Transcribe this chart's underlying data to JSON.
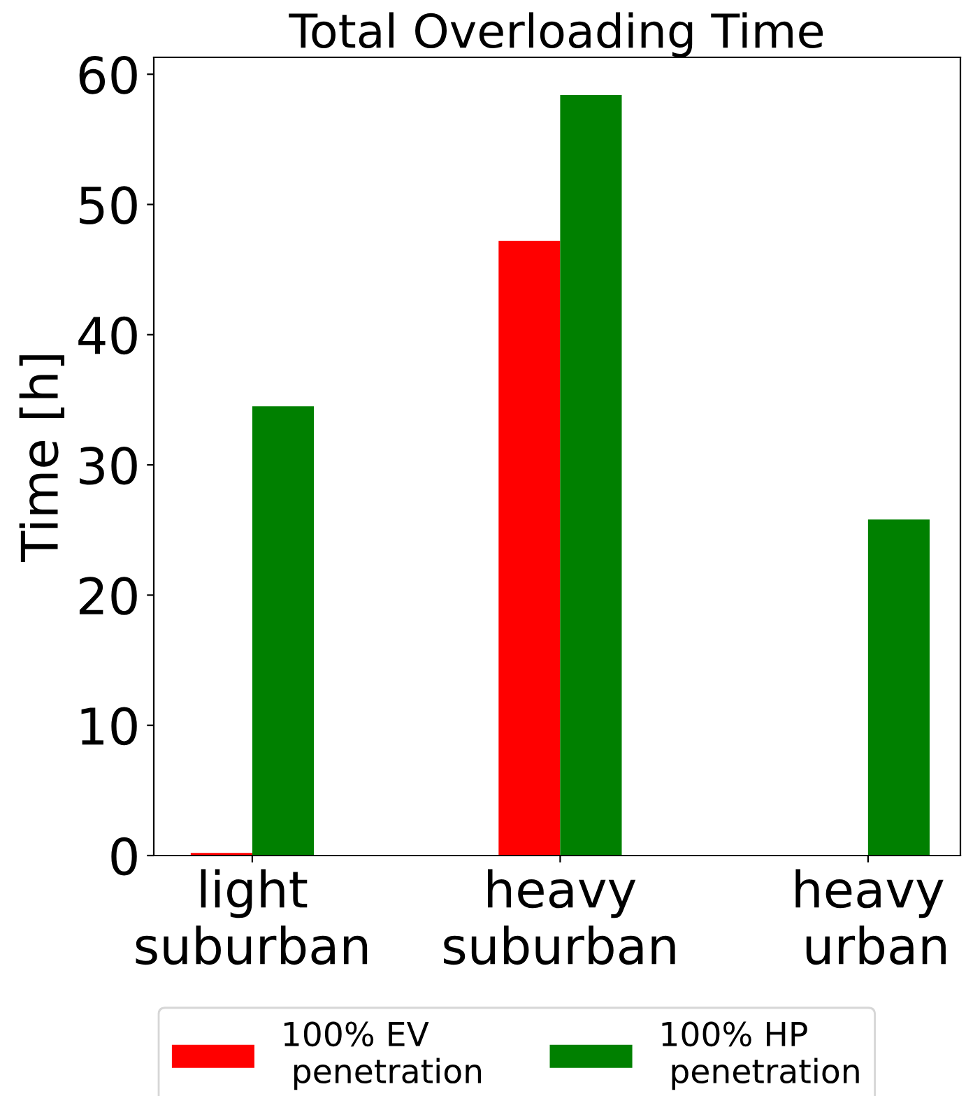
{
  "chart_data": {
    "type": "bar",
    "title": "Total Overloading Time",
    "ylabel": "Time [h]",
    "categories": [
      "light\nsuburban",
      "heavy\nsuburban",
      "heavy\n urban"
    ],
    "series": [
      {
        "name": "100% EV\n penetration",
        "color": "#ff0000",
        "values": [
          0.2,
          47.2,
          0
        ]
      },
      {
        "name": "100% HP\n penetration",
        "color": "#008000",
        "values": [
          34.5,
          58.4,
          25.8
        ]
      }
    ],
    "ylim": [
      0,
      61.3
    ],
    "yticks": [
      0,
      10,
      20,
      30,
      40,
      50,
      60
    ],
    "grid": false,
    "legend": "bottom"
  }
}
